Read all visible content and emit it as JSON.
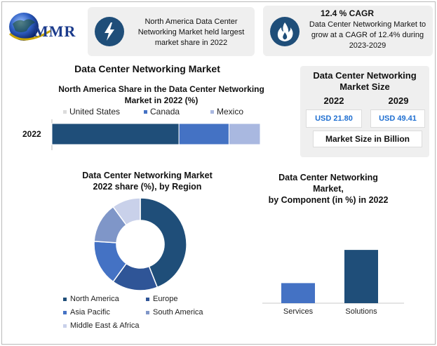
{
  "brand": {
    "logo_text": "MMR"
  },
  "colors": {
    "dark_blue": "#1f4e79",
    "mid_blue": "#4472c4",
    "light_blue": "#a9b8e0",
    "steel_blue": "#7f96c8",
    "pale_blue": "#c9d1ea",
    "value_blue": "#1f6fd1",
    "panel_gray": "#efefef"
  },
  "info_boxes": {
    "left": {
      "icon": "lightning-icon",
      "text_lines": [
        "North America Data Center",
        "Networking Market held largest",
        "market share in 2022"
      ]
    },
    "right": {
      "icon": "flame-icon",
      "title": "12.4 % CAGR",
      "text_lines": [
        "Data Center Networking Market to",
        "grow at a CAGR of 12.4% during",
        "2023-2029"
      ]
    }
  },
  "main_title": "Data Center Networking Market",
  "market_size": {
    "title_lines": [
      "Data Center Networking",
      "Market Size"
    ],
    "years": [
      "2022",
      "2029"
    ],
    "values": [
      "USD 21.80",
      "USD 49.41"
    ],
    "footer": "Market Size in Billion"
  },
  "chart_data": [
    {
      "type": "bar",
      "orientation": "horizontal",
      "stacked": true,
      "title": "North America Share in the Data Center Networking Market in 2022 (%)",
      "title_lines": [
        "North America Share in the Data Center Networking",
        "Market in 2022 (%)"
      ],
      "categories": [
        "2022"
      ],
      "series": [
        {
          "name": "United States",
          "values": [
            61
          ],
          "color": "#1f4e79"
        },
        {
          "name": "Canada",
          "values": [
            24
          ],
          "color": "#4472c4"
        },
        {
          "name": "Mexico",
          "values": [
            15
          ],
          "color": "#a9b8e0"
        }
      ],
      "legend": "top",
      "grid": false
    },
    {
      "type": "pie",
      "donut": true,
      "title": "Data Center Networking Market 2022 share (%), by Region",
      "title_lines": [
        "Data Center Networking Market",
        "2022 share (%), by Region"
      ],
      "labels": [
        "North America",
        "Europe",
        "Asia Pacific",
        "South America",
        "Middle East & Africa"
      ],
      "values": [
        44,
        16,
        16,
        14,
        10
      ],
      "colors": [
        "#1f4e79",
        "#2f5597",
        "#4472c4",
        "#7f96c8",
        "#c9d1ea"
      ],
      "legend": "bottom"
    },
    {
      "type": "bar",
      "title": "Data Center Networking Market, by Component (in %) in 2022",
      "title_lines": [
        "Data Center Networking",
        "Market,",
        "by Component (in %) in 2022"
      ],
      "categories": [
        "Services",
        "Solutions"
      ],
      "values": [
        26,
        69
      ],
      "colors": [
        "#4472c4",
        "#1f4e79"
      ],
      "ylim": [
        0,
        100
      ],
      "grid": false
    }
  ]
}
